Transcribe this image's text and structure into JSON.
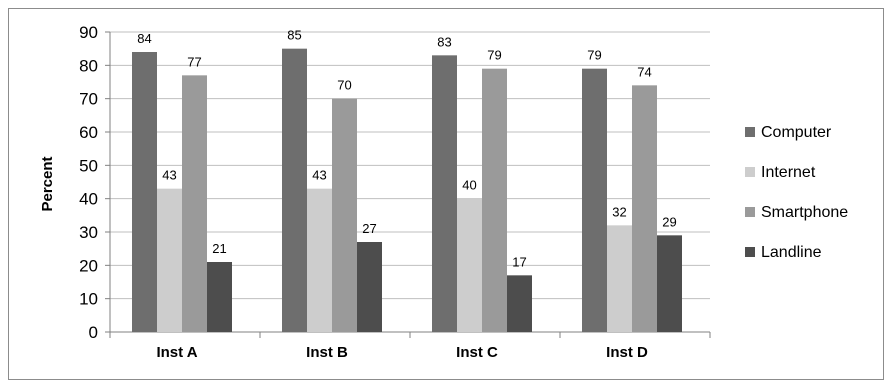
{
  "chart_data": {
    "type": "bar",
    "title": "",
    "xlabel": "",
    "ylabel": "Percent",
    "ylim": [
      0,
      90
    ],
    "yticks": [
      0,
      10,
      20,
      30,
      40,
      50,
      60,
      70,
      80,
      90
    ],
    "grid": true,
    "legend_position": "right",
    "categories": [
      "Inst A",
      "Inst B",
      "Inst C",
      "Inst D"
    ],
    "series": [
      {
        "name": "Computer",
        "color": "#6e6e6e",
        "values": [
          84,
          85,
          83,
          79
        ]
      },
      {
        "name": "Internet",
        "color": "#cdcdcd",
        "values": [
          43,
          43,
          40,
          32
        ]
      },
      {
        "name": "Smartphone",
        "color": "#9a9a9a",
        "values": [
          77,
          70,
          79,
          74
        ]
      },
      {
        "name": "Landline",
        "color": "#4d4d4d",
        "values": [
          21,
          27,
          17,
          29
        ]
      }
    ]
  }
}
